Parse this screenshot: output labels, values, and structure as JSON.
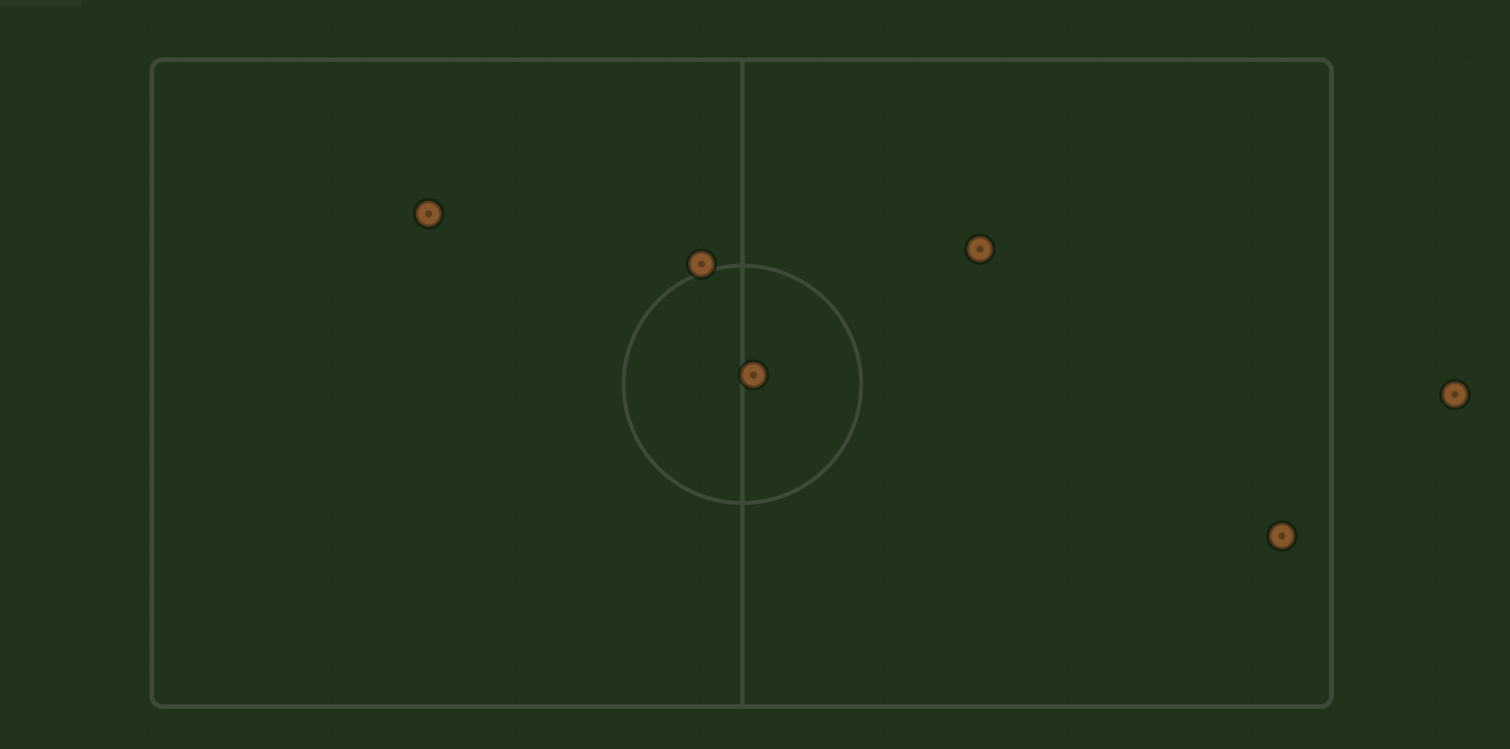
{
  "header": {
    "corner_label": ""
  },
  "colors": {
    "background": "#21331a",
    "field_line": "#3e4a38",
    "player_fill": "#87572b",
    "player_ring": "#5b3b1d"
  },
  "players": [
    {
      "id": "player-1",
      "label": ""
    },
    {
      "id": "player-2",
      "label": ""
    },
    {
      "id": "player-3",
      "label": ""
    },
    {
      "id": "player-4",
      "label": ""
    },
    {
      "id": "player-5",
      "label": ""
    },
    {
      "id": "player-6",
      "label": ""
    }
  ]
}
